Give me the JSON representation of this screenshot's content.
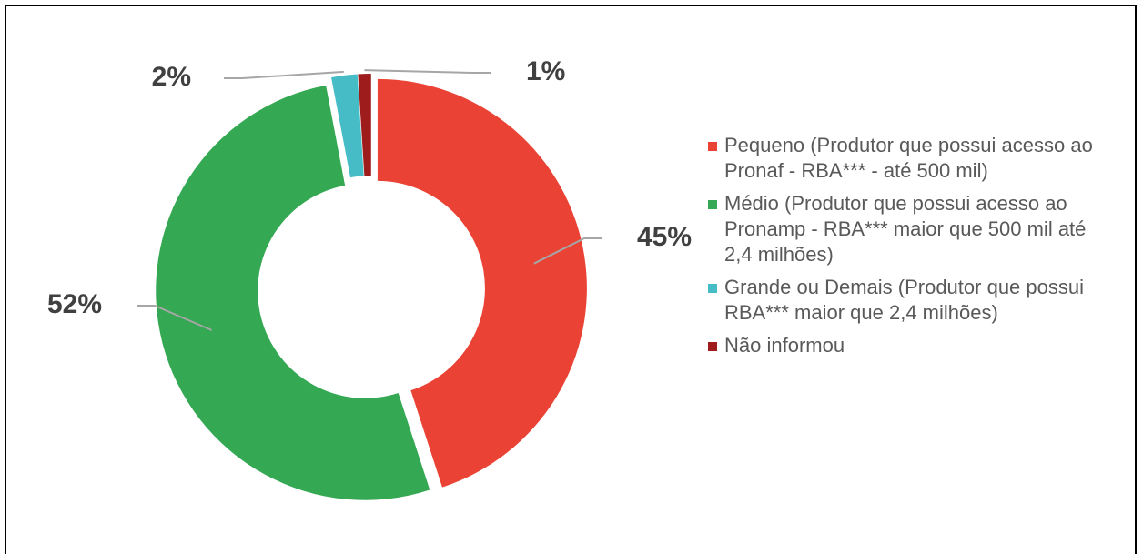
{
  "chart_data": {
    "type": "donut",
    "categories": [
      "Pequeno (Produtor que possui acesso ao Pronaf - RBA*** - até 500 mil)",
      "Médio (Produtor que possui acesso ao Pronamp - RBA*** maior que 500 mil até 2,4 milhões)",
      "Grande ou Demais (Produtor que possui RBA*** maior que 2,4 milhões)",
      "Não informou"
    ],
    "values": [
      45,
      52,
      2,
      1
    ],
    "value_labels": [
      "45%",
      "52%",
      "2%",
      "1%"
    ],
    "colors": [
      "#ea4335",
      "#34a853",
      "#46bdc6",
      "#9e1c1c"
    ],
    "legend": "right"
  }
}
